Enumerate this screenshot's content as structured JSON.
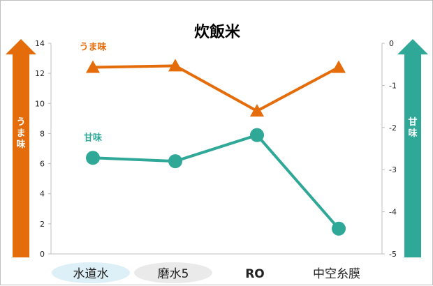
{
  "chart_data": {
    "type": "line",
    "title": "炊飯米",
    "categories": [
      "水道水",
      "磨水5",
      "RO",
      "中空糸膜"
    ],
    "category_label_styles": [
      "pill-blue",
      "pill-gray",
      "bold",
      "plain"
    ],
    "y_left": {
      "label": "うま味",
      "ylim": [
        0,
        14
      ],
      "ticks": [
        0,
        2,
        4,
        6,
        8,
        10,
        12,
        14
      ]
    },
    "y_right": {
      "label": "甘味",
      "ylim": [
        -5,
        0
      ],
      "ticks": [
        0,
        -1,
        -2,
        -3,
        -4,
        -5
      ]
    },
    "series": [
      {
        "name": "うま味",
        "axis": "left",
        "marker": "triangle",
        "color": "#E46C0A",
        "values": [
          12.4,
          12.5,
          9.5,
          12.4
        ]
      },
      {
        "name": "甘味",
        "axis": "right",
        "marker": "circle",
        "color": "#2FA898",
        "values": [
          -2.72,
          -2.8,
          -2.18,
          -4.4
        ]
      }
    ],
    "grid": false
  },
  "colors": {
    "umami": "#E46C0A",
    "sweet": "#2FA898",
    "pill_blue": "#DDEFF7",
    "pill_gray": "#EAEAEA"
  }
}
